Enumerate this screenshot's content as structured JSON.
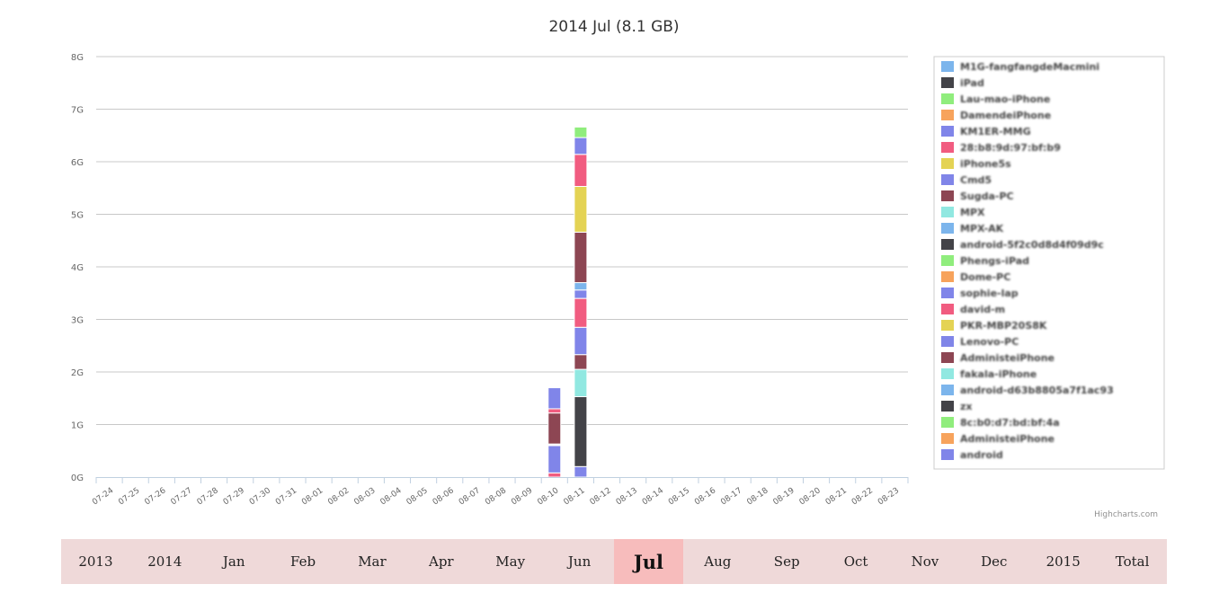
{
  "chart_data": {
    "type": "bar",
    "stacked": true,
    "title": "2014 Jul (8.1 GB)",
    "ylim": [
      0,
      8
    ],
    "y_tick_labels": [
      "0G",
      "1G",
      "2G",
      "3G",
      "4G",
      "5G",
      "6G",
      "7G",
      "8G"
    ],
    "grid": true,
    "legend_position": "right",
    "categories": [
      "07-24",
      "07-25",
      "07-26",
      "07-27",
      "07-28",
      "07-29",
      "07-30",
      "07-31",
      "08-01",
      "08-02",
      "08-03",
      "08-04",
      "08-05",
      "08-06",
      "08-07",
      "08-08",
      "08-09",
      "08-10",
      "08-11",
      "08-12",
      "08-13",
      "08-14",
      "08-15",
      "08-16",
      "08-17",
      "08-18",
      "08-19",
      "08-20",
      "08-21",
      "08-22",
      "08-23"
    ],
    "series_colors": [
      "#7cb5ec",
      "#434348",
      "#90ed7d",
      "#f7a35c",
      "#8085e9",
      "#f15c80",
      "#e4d354",
      "#8085e8",
      "#8d4653",
      "#91e8e1"
    ],
    "segments": [
      {
        "category": "08-10",
        "values_gb": [
          0.08,
          0.52,
          0.03,
          0.59,
          0.08,
          0.4
        ],
        "colors": [
          "#f15c80",
          "#8085e9",
          "#ffffff",
          "#8d4653",
          "#f15c80",
          "#8085e9"
        ]
      },
      {
        "category": "08-11",
        "values_gb": [
          0.2,
          1.33,
          0.52,
          0.28,
          0.52,
          0.55,
          0.16,
          0.14,
          0.96,
          0.87,
          0.61,
          0.32,
          0.2
        ],
        "colors": [
          "#8085e9",
          "#434348",
          "#91e8e1",
          "#8d4653",
          "#8085e9",
          "#f15c80",
          "#8085e9",
          "#7cb5ec",
          "#8d4653",
          "#e4d354",
          "#f15c80",
          "#8085e9",
          "#90ed7d"
        ]
      }
    ],
    "legend": [
      {
        "label": "M1G-fangfangdeMacmini",
        "color": "#7cb5ec"
      },
      {
        "label": "iPad",
        "color": "#434348"
      },
      {
        "label": "Lau-mao-iPhone",
        "color": "#90ed7d"
      },
      {
        "label": "DamendeiPhone",
        "color": "#f7a35c"
      },
      {
        "label": "KM1ER-MMG",
        "color": "#8085e9"
      },
      {
        "label": "28:b8:9d:97:bf:b9",
        "color": "#f15c80"
      },
      {
        "label": "iPhone5s",
        "color": "#e4d354"
      },
      {
        "label": "Cmd5",
        "color": "#8085e8"
      },
      {
        "label": "Sugda-PC",
        "color": "#8d4653"
      },
      {
        "label": "MPX",
        "color": "#91e8e1"
      },
      {
        "label": "MPX-AK",
        "color": "#7cb5ec"
      },
      {
        "label": "android-5f2c0d8d4f09d9c",
        "color": "#434348"
      },
      {
        "label": "Phengs-iPad",
        "color": "#90ed7d"
      },
      {
        "label": "Dome-PC",
        "color": "#f7a35c"
      },
      {
        "label": "sophie-lap",
        "color": "#8085e9"
      },
      {
        "label": "david-m",
        "color": "#f15c80"
      },
      {
        "label": "PKR-MBP20S8K",
        "color": "#e4d354"
      },
      {
        "label": "Lenovo-PC",
        "color": "#8085e8"
      },
      {
        "label": "AdministeiPhone",
        "color": "#8d4653"
      },
      {
        "label": "fakala-iPhone",
        "color": "#91e8e1"
      },
      {
        "label": "android-d63b8805a7f1ac93",
        "color": "#7cb5ec"
      },
      {
        "label": "zx",
        "color": "#434348"
      },
      {
        "label": "8c:b0:d7:bd:bf:4a",
        "color": "#90ed7d"
      },
      {
        "label": "AdministeiPhone",
        "color": "#f7a35c"
      },
      {
        "label": "android",
        "color": "#8085e9"
      }
    ],
    "credit": "Highcharts.com"
  },
  "nav": {
    "items": [
      "2013",
      "2014",
      "Jan",
      "Feb",
      "Mar",
      "Apr",
      "May",
      "Jun",
      "Jul",
      "Aug",
      "Sep",
      "Oct",
      "Nov",
      "Dec",
      "2015",
      "Total"
    ],
    "active": "Jul"
  }
}
